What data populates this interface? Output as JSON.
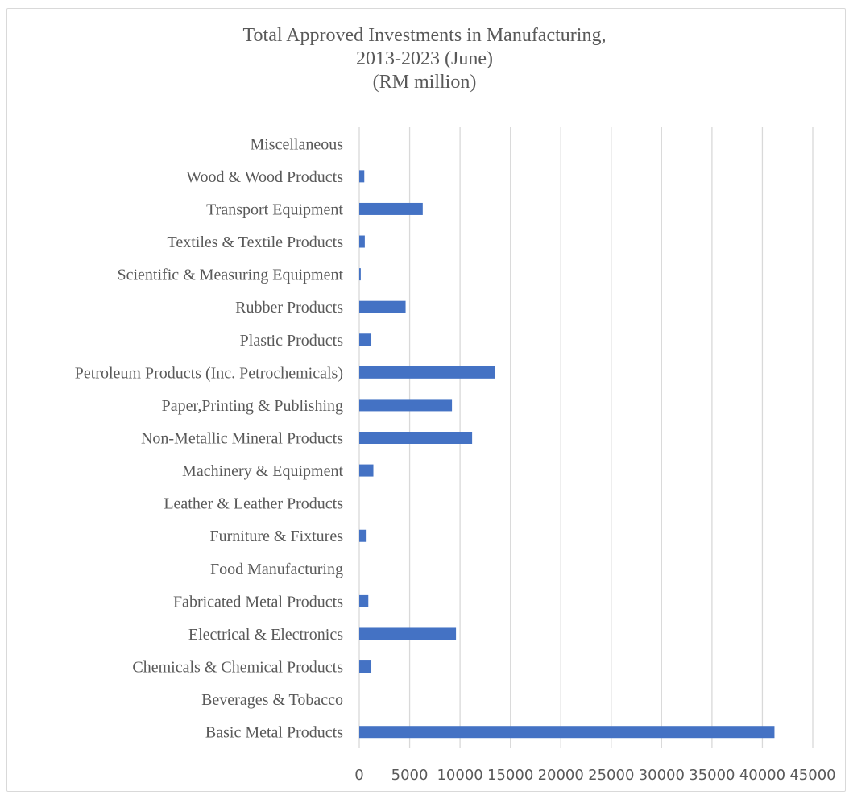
{
  "chart_data": {
    "type": "bar",
    "orientation": "horizontal",
    "title_lines": [
      "Total Approved Investments in Manufacturing,",
      "2013-2023 (June)",
      "(RM million)"
    ],
    "categories": [
      "Basic Metal Products",
      "Beverages & Tobacco",
      "Chemicals & Chemical Products",
      "Electrical & Electronics",
      "Fabricated Metal Products",
      "Food Manufacturing",
      "Furniture & Fixtures",
      "Leather & Leather Products",
      "Machinery & Equipment",
      "Non-Metallic Mineral Products",
      "Paper,Printing & Publishing",
      "Petroleum Products (Inc. Petrochemicals)",
      "Plastic Products",
      "Rubber Products",
      "Scientific & Measuring Equipment",
      "Textiles & Textile Products",
      "Transport Equipment",
      "Wood & Wood Products",
      "Miscellaneous"
    ],
    "values": [
      41200,
      0,
      1200,
      9600,
      900,
      0,
      650,
      0,
      1400,
      11200,
      9200,
      13500,
      1200,
      4600,
      150,
      550,
      6300,
      500,
      0
    ],
    "xlim": [
      0,
      45000
    ],
    "xticks": [
      0,
      5000,
      10000,
      15000,
      20000,
      25000,
      30000,
      35000,
      40000,
      45000
    ],
    "grid": true,
    "bar_color": "#4472c4",
    "grid_color": "#d9d9d9"
  }
}
